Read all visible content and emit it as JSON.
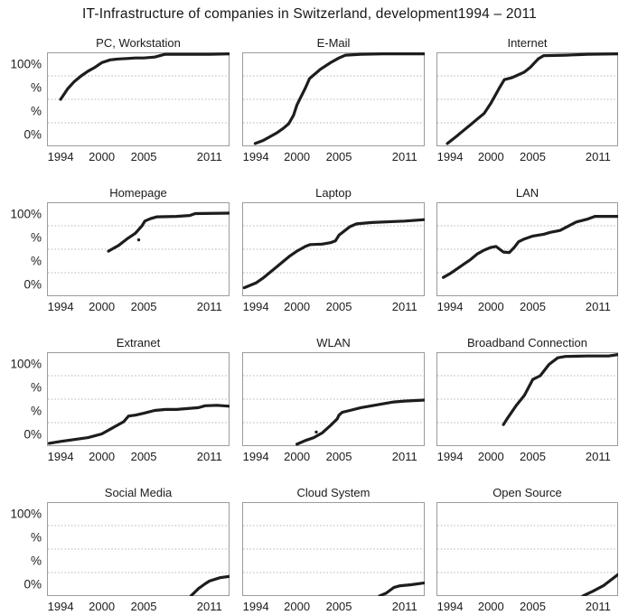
{
  "chart_data": {
    "type": "line",
    "layout": "small-multiples-4x3",
    "title": "IT-Infrastructure of companies in Switzerland, development1994 – 2011",
    "grid": "horizontal-dotted",
    "legend": "none",
    "ylim": [
      0,
      100
    ],
    "y_tick_labels": [
      "100%",
      "%",
      "%",
      "0%"
    ],
    "y_tick_band_centers": [
      0.125,
      0.375,
      0.625,
      0.875
    ],
    "x_tick_labels": [
      "1994",
      "2000",
      "2005",
      "2011"
    ],
    "x_tick_years": [
      1994,
      2000,
      2005,
      2011
    ],
    "x_tick_anchor_rel": [
      0.075,
      0.3,
      0.53,
      0.89
    ],
    "x_anchor_map": [
      [
        1992,
        0.0
      ],
      [
        1994,
        0.075
      ],
      [
        2000,
        0.3
      ],
      [
        2005,
        0.53
      ],
      [
        2011,
        0.89
      ],
      [
        2012.9,
        1.0
      ]
    ],
    "line_color": "#1d1d1d",
    "line_width": 3.2,
    "grid_color": "#b3b3b3",
    "border_color": "#9c9c9c",
    "series": [
      {
        "name": "PC, Workstation",
        "points": [
          [
            1994,
            50
          ],
          [
            1995,
            61
          ],
          [
            1996,
            69
          ],
          [
            1997,
            75
          ],
          [
            1998,
            80
          ],
          [
            1999,
            84
          ],
          [
            2000,
            89
          ],
          [
            2001,
            92
          ],
          [
            2002,
            93
          ],
          [
            2003,
            93.5
          ],
          [
            2004,
            94
          ],
          [
            2005,
            94
          ],
          [
            2006,
            95
          ],
          [
            2006.8,
            97.5
          ],
          [
            2007,
            98
          ],
          [
            2009,
            98
          ],
          [
            2011,
            98
          ],
          [
            2012.9,
            98.5
          ]
        ]
      },
      {
        "name": "E-Mail",
        "points": [
          [
            1993.9,
            3
          ],
          [
            1995,
            6
          ],
          [
            1996,
            10
          ],
          [
            1997,
            14
          ],
          [
            1998,
            19
          ],
          [
            1998.8,
            24
          ],
          [
            1999.5,
            33
          ],
          [
            2000,
            44
          ],
          [
            2001,
            62
          ],
          [
            2001.5,
            72
          ],
          [
            2002,
            76
          ],
          [
            2002.8,
            82
          ],
          [
            2004,
            89
          ],
          [
            2005,
            94
          ],
          [
            2005.6,
            97
          ],
          [
            2007,
            98
          ],
          [
            2009,
            98.5
          ],
          [
            2012.9,
            98.5
          ]
        ]
      },
      {
        "name": "Internet",
        "points": [
          [
            1993.6,
            3
          ],
          [
            1995,
            11
          ],
          [
            1996,
            17
          ],
          [
            1997,
            23
          ],
          [
            1998,
            29
          ],
          [
            1999,
            35
          ],
          [
            2000,
            46
          ],
          [
            2001,
            62
          ],
          [
            2001.6,
            71
          ],
          [
            2002.5,
            73
          ],
          [
            2003,
            75
          ],
          [
            2004,
            79
          ],
          [
            2004.7,
            84
          ],
          [
            2005.5,
            93
          ],
          [
            2006,
            96.5
          ],
          [
            2008,
            97
          ],
          [
            2010,
            98
          ],
          [
            2012.9,
            98.5
          ]
        ]
      },
      {
        "name": "Homepage",
        "points": [
          [
            2000.8,
            48
          ],
          [
            2002,
            54
          ],
          [
            2003,
            61
          ],
          [
            2004,
            67
          ],
          [
            2004.8,
            75
          ],
          [
            2005.1,
            80
          ],
          [
            2005.6,
            82.5
          ],
          [
            2006.2,
            84.5
          ],
          [
            2008,
            85
          ],
          [
            2009.2,
            86
          ],
          [
            2009.7,
            88
          ],
          [
            2012.9,
            88.5
          ]
        ],
        "star_marker": [
          2004.4,
          60
        ]
      },
      {
        "name": "Laptop",
        "points": [
          [
            1992.3,
            9
          ],
          [
            1994,
            14
          ],
          [
            1995,
            19
          ],
          [
            1996,
            25
          ],
          [
            1997,
            31
          ],
          [
            1998,
            37
          ],
          [
            1999,
            43
          ],
          [
            2000,
            48
          ],
          [
            2001,
            53
          ],
          [
            2001.6,
            55
          ],
          [
            2003,
            55.5
          ],
          [
            2004,
            57
          ],
          [
            2004.6,
            59
          ],
          [
            2005,
            65
          ],
          [
            2006,
            74
          ],
          [
            2006.6,
            77
          ],
          [
            2008,
            78.5
          ],
          [
            2010,
            79.5
          ],
          [
            2011,
            80
          ],
          [
            2012.9,
            81.5
          ]
        ]
      },
      {
        "name": "LAN",
        "points": [
          [
            1993,
            20
          ],
          [
            1994,
            24
          ],
          [
            1995,
            29
          ],
          [
            1996,
            34
          ],
          [
            1997,
            39
          ],
          [
            1998,
            45
          ],
          [
            1999,
            49
          ],
          [
            2000,
            52
          ],
          [
            2000.6,
            53
          ],
          [
            2001.5,
            47
          ],
          [
            2002.2,
            46.5
          ],
          [
            2002.8,
            52
          ],
          [
            2003.3,
            58
          ],
          [
            2004,
            61
          ],
          [
            2005,
            64
          ],
          [
            2006,
            66
          ],
          [
            2006.6,
            68
          ],
          [
            2007.5,
            70
          ],
          [
            2008,
            73
          ],
          [
            2009,
            79
          ],
          [
            2010,
            82
          ],
          [
            2010.7,
            85
          ],
          [
            2012.9,
            85
          ]
        ]
      },
      {
        "name": "Extranet",
        "points": [
          [
            1992.3,
            3
          ],
          [
            1994,
            5
          ],
          [
            1996,
            7
          ],
          [
            1998,
            9
          ],
          [
            1999,
            11
          ],
          [
            2000,
            13
          ],
          [
            2001,
            18
          ],
          [
            2002,
            23
          ],
          [
            2002.6,
            26
          ],
          [
            2003.2,
            32
          ],
          [
            2004,
            33
          ],
          [
            2005,
            35
          ],
          [
            2006,
            38
          ],
          [
            2007,
            39
          ],
          [
            2008,
            39
          ],
          [
            2009,
            40
          ],
          [
            2010,
            41
          ],
          [
            2010.6,
            43
          ],
          [
            2011.7,
            43.5
          ],
          [
            2012.9,
            42.5
          ]
        ]
      },
      {
        "name": "WLAN",
        "points": [
          [
            2000,
            2
          ],
          [
            2001,
            6
          ],
          [
            2002,
            9
          ],
          [
            2003,
            14
          ],
          [
            2004,
            22
          ],
          [
            2004.8,
            29
          ],
          [
            2005,
            33
          ],
          [
            2005.3,
            36
          ],
          [
            2006,
            38
          ],
          [
            2007,
            41
          ],
          [
            2008,
            43
          ],
          [
            2009,
            45
          ],
          [
            2010,
            47
          ],
          [
            2011,
            48
          ],
          [
            2012.9,
            49
          ]
        ],
        "star_marker": [
          2002.3,
          15
        ]
      },
      {
        "name": "Broadband Connection",
        "points": [
          [
            2001.5,
            23
          ],
          [
            2002,
            30
          ],
          [
            2003,
            43
          ],
          [
            2004,
            54
          ],
          [
            2005,
            71
          ],
          [
            2005.7,
            75
          ],
          [
            2006.5,
            87
          ],
          [
            2007.3,
            94
          ],
          [
            2008,
            95.5
          ],
          [
            2010,
            96
          ],
          [
            2012,
            96
          ],
          [
            2012.9,
            97.5
          ]
        ]
      },
      {
        "name": "Social Media",
        "points": [
          [
            2009.3,
            0
          ],
          [
            2010,
            8
          ],
          [
            2010.6,
            13
          ],
          [
            2011,
            16
          ],
          [
            2012,
            19.5
          ],
          [
            2012.9,
            21
          ]
        ]
      },
      {
        "name": "Cloud System",
        "points": [
          [
            2008.7,
            0
          ],
          [
            2009.3,
            3
          ],
          [
            2010,
            9
          ],
          [
            2010.6,
            11
          ],
          [
            2011.6,
            12
          ],
          [
            2012.9,
            14
          ]
        ]
      },
      {
        "name": "Open Source",
        "points": [
          [
            2009.6,
            0
          ],
          [
            2010.5,
            5
          ],
          [
            2011.5,
            11
          ],
          [
            2012.9,
            23
          ]
        ]
      }
    ]
  }
}
